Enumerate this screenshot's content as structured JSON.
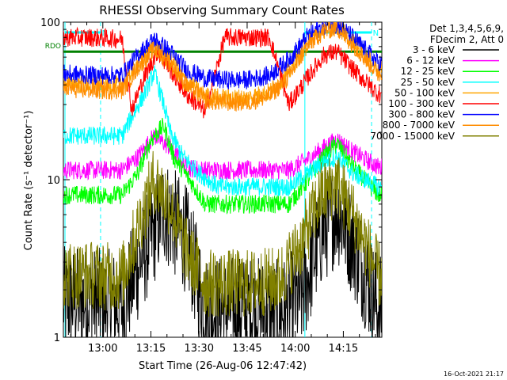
{
  "chart_data": {
    "type": "line",
    "title": "RHESSI Observing Summary Count Rates",
    "xlabel": "Start Time (26-Aug-06 12:47:42)",
    "ylabel": "Count Rate (s⁻¹ detector⁻¹)",
    "y_scale": "log",
    "ylim": [
      1,
      100
    ],
    "y_ticks": [
      "1",
      "10",
      "100"
    ],
    "x_ticks": [
      "13:00",
      "13:15",
      "13:30",
      "13:45",
      "14:00",
      "14:15"
    ],
    "x_tick_minutes": [
      780,
      795,
      810,
      825,
      840,
      855
    ],
    "xlim_minutes": [
      767.7,
      867.0
    ],
    "legend_header": [
      "Det 1,3,4,5,6,9,",
      "FDecim 2, Att 0"
    ],
    "series": [
      {
        "name": "3 - 6 keV",
        "color": "#000000",
        "x": [
          768,
          776,
          786,
          793,
          799,
          806,
          812,
          818,
          826,
          835,
          842,
          848,
          853,
          858,
          866
        ],
        "y": [
          1.7,
          1.7,
          1.6,
          3.5,
          6.5,
          4.2,
          1.5,
          1.5,
          1.5,
          1.4,
          1.8,
          4.5,
          6.5,
          4.0,
          1.5
        ]
      },
      {
        "name": "6 - 12 keV",
        "color": "#ff00ff",
        "x": [
          768,
          776,
          786,
          791,
          796,
          801,
          806,
          812,
          825,
          838,
          844,
          849,
          853,
          858,
          866
        ],
        "y": [
          11.5,
          11.5,
          11.5,
          14,
          19,
          16,
          12,
          11.5,
          11.5,
          11.5,
          13.5,
          16,
          18,
          15,
          12
        ]
      },
      {
        "name": "12 - 25 keV",
        "color": "#00ff00",
        "x": [
          768,
          776,
          786,
          791,
          795,
          799,
          802,
          807,
          812,
          825,
          838,
          844,
          849,
          853,
          858,
          866
        ],
        "y": [
          8,
          8,
          8,
          11,
          18,
          22,
          14,
          10,
          7,
          7,
          7,
          10,
          14,
          17,
          12,
          8
        ]
      },
      {
        "name": "25 - 50 keV",
        "color": "#00ffff",
        "x": [
          768,
          786,
          789,
          793,
          796,
          799,
          801,
          805,
          810,
          816,
          830,
          838,
          844,
          849,
          853,
          858,
          866
        ],
        "y": [
          19,
          19,
          25,
          35,
          48,
          30,
          20,
          14,
          11,
          9,
          9,
          9,
          11,
          13,
          14,
          11,
          9
        ]
      },
      {
        "name": "50 - 100 keV",
        "color": "#ffa500",
        "x": [
          768,
          776,
          786,
          791,
          796,
          801,
          806,
          812,
          818,
          825,
          832,
          838,
          844,
          849,
          853,
          858,
          866
        ],
        "y": [
          41,
          40,
          40,
          55,
          70,
          58,
          42,
          34,
          33,
          33,
          36,
          48,
          75,
          90,
          95,
          75,
          50
        ]
      },
      {
        "name": "100 - 300 keV",
        "color": "#ff0000",
        "x": [
          768,
          776,
          786,
          789,
          793,
          797,
          801,
          806,
          812,
          818,
          825,
          832,
          838,
          844,
          849,
          853,
          858,
          866
        ],
        "y": [
          80,
          80,
          78,
          28,
          45,
          65,
          50,
          35,
          27,
          80,
          80,
          80,
          30,
          45,
          62,
          65,
          50,
          35
        ]
      },
      {
        "name": "300 - 800 keV",
        "color": "#0000ff",
        "x": [
          768,
          776,
          786,
          791,
          796,
          801,
          806,
          812,
          818,
          825,
          832,
          838,
          844,
          849,
          853,
          858,
          866
        ],
        "y": [
          47,
          46,
          46,
          62,
          78,
          65,
          50,
          44,
          43,
          43,
          46,
          58,
          82,
          95,
          97,
          80,
          55
        ]
      },
      {
        "name": "800 - 7000 keV",
        "color": "#ff8c00",
        "x": [
          768,
          776,
          786,
          791,
          796,
          801,
          806,
          812,
          818,
          825,
          832,
          838,
          844,
          849,
          853,
          858,
          866
        ],
        "y": [
          38,
          37,
          37,
          52,
          67,
          55,
          40,
          32,
          31,
          31,
          34,
          45,
          72,
          88,
          92,
          72,
          47
        ]
      },
      {
        "name": "7000 - 15000 keV",
        "color": "#808000",
        "x": [
          768,
          776,
          786,
          791,
          796,
          801,
          806,
          812,
          818,
          826,
          835,
          842,
          848,
          853,
          858,
          866
        ],
        "y": [
          2.5,
          2.5,
          2.4,
          5,
          10,
          7,
          3.5,
          2.2,
          2.2,
          2.2,
          2.3,
          4,
          8,
          9.5,
          6,
          2.5
        ]
      }
    ],
    "rdo_label": "RDO",
    "rdo_level": 65,
    "rdo_color": "#008000",
    "cyan_marker_color": "#00ffff",
    "cyan_marker_minutes": [
      768.2,
      779.3,
      843.0,
      863.8
    ],
    "cyan_top_level": 86,
    "cyan_top_segments": [
      [
        768.2,
        779.3
      ],
      [
        843.0,
        863.8
      ]
    ],
    "n_markers": [
      "N",
      "N"
    ],
    "n_marker_minutes": [
      779.7,
      864.2
    ],
    "grid": false,
    "legend_position": "right"
  },
  "footer_timestamp": "16-Oct-2021 21:17"
}
